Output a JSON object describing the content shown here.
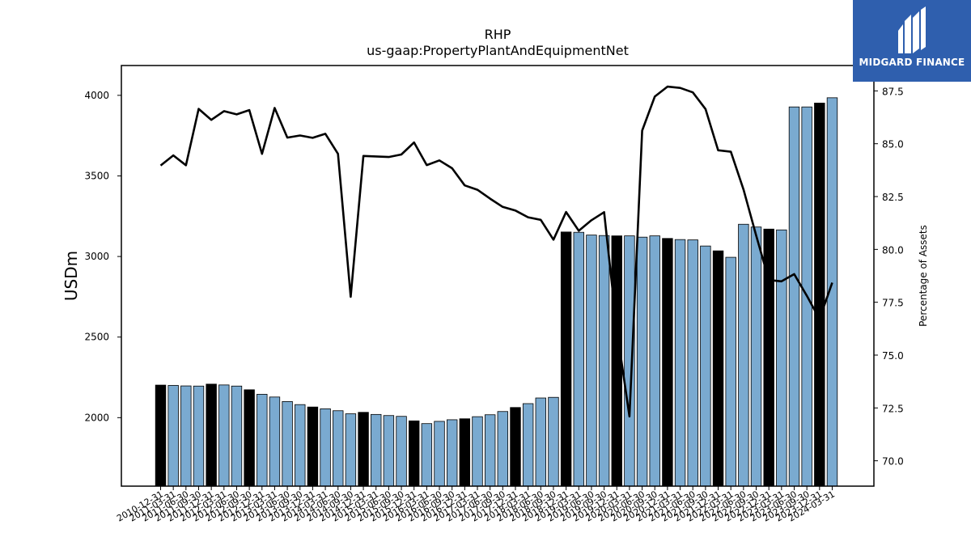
{
  "logo": {
    "text": "MIDGARD FINANCE",
    "background": "#2f5fae",
    "icon": "midgard-mark-icon"
  },
  "colors": {
    "bar_light": "#7aaad0",
    "bar_dark": "#000000",
    "line": "#000000"
  },
  "chart_data": {
    "type": "bar",
    "title": "RHP",
    "subtitle": "us-gaap:PropertyPlantAndEquipmentNet",
    "ylabel": "USDm",
    "y2label": "Percentage of Assets",
    "ylim": [
      1575,
      4185
    ],
    "y2lim": [
      68.8,
      88.7
    ],
    "yticks": [
      2000,
      2500,
      3000,
      3500,
      4000
    ],
    "y2ticks": [
      70.0,
      72.5,
      75.0,
      77.5,
      80.0,
      82.5,
      85.0,
      87.5
    ],
    "categories": [
      "2010-12-31",
      "2011-03-31",
      "2011-06-30",
      "2011-09-30",
      "2011-12-31",
      "2012-03-31",
      "2012-06-30",
      "2012-09-30",
      "2012-12-31",
      "2013-03-31",
      "2013-06-30",
      "2013-09-30",
      "2013-12-31",
      "2014-03-31",
      "2014-06-30",
      "2014-09-30",
      "2014-12-31",
      "2015-03-31",
      "2015-06-30",
      "2015-09-30",
      "2015-12-31",
      "2016-03-31",
      "2016-06-30",
      "2016-09-30",
      "2016-12-31",
      "2017-03-31",
      "2017-06-30",
      "2017-09-30",
      "2017-12-31",
      "2018-03-31",
      "2018-06-30",
      "2018-09-30",
      "2018-12-31",
      "2019-03-31",
      "2019-06-30",
      "2019-09-30",
      "2019-12-31",
      "2020-03-31",
      "2020-06-30",
      "2020-09-30",
      "2020-12-31",
      "2021-03-31",
      "2021-06-30",
      "2021-09-30",
      "2021-12-31",
      "2022-03-31",
      "2022-06-30",
      "2022-09-30",
      "2022-12-31",
      "2023-03-31",
      "2023-06-30",
      "2023-09-30",
      "2023-12-31",
      "2024-03-31"
    ],
    "series": [
      {
        "type": "bar",
        "values": [
          2202,
          2200,
          2197,
          2196,
          2208,
          2203,
          2196,
          2173,
          2145,
          2128,
          2100,
          2081,
          2066,
          2055,
          2043,
          2024,
          2033,
          2020,
          2013,
          2008,
          1980,
          1963,
          1977,
          1987,
          1993,
          2006,
          2018,
          2038,
          2063,
          2087,
          2122,
          2126,
          3152,
          3150,
          3133,
          3130,
          3128,
          3128,
          3120,
          3128,
          3112,
          3105,
          3103,
          3065,
          3035,
          2995,
          3200,
          3183,
          3170,
          3165,
          3928,
          3928,
          3952,
          3985
        ],
        "highlight": [
          true,
          false,
          false,
          false,
          true,
          false,
          false,
          true,
          false,
          false,
          false,
          false,
          true,
          false,
          false,
          false,
          true,
          false,
          false,
          false,
          true,
          false,
          false,
          false,
          true,
          false,
          false,
          false,
          true,
          false,
          false,
          false,
          true,
          false,
          false,
          false,
          true,
          false,
          false,
          false,
          true,
          false,
          false,
          false,
          true,
          false,
          false,
          false,
          true,
          false,
          false,
          false,
          true,
          false
        ]
      },
      {
        "type": "line",
        "axis": "right",
        "values": [
          83.97,
          84.45,
          83.98,
          86.65,
          86.13,
          86.54,
          86.39,
          86.59,
          84.52,
          86.69,
          85.29,
          85.39,
          85.28,
          85.47,
          84.52,
          77.76,
          84.42,
          84.4,
          84.37,
          84.49,
          85.06,
          83.99,
          84.21,
          83.84,
          83.03,
          82.82,
          82.4,
          82.01,
          81.84,
          81.52,
          81.4,
          80.46,
          81.77,
          80.88,
          81.38,
          81.76,
          76.22,
          72.1,
          85.62,
          87.23,
          87.7,
          87.64,
          87.43,
          86.64,
          84.69,
          84.62,
          82.83,
          80.66,
          78.55,
          78.49,
          78.83,
          77.8,
          76.71,
          78.43
        ]
      }
    ]
  }
}
